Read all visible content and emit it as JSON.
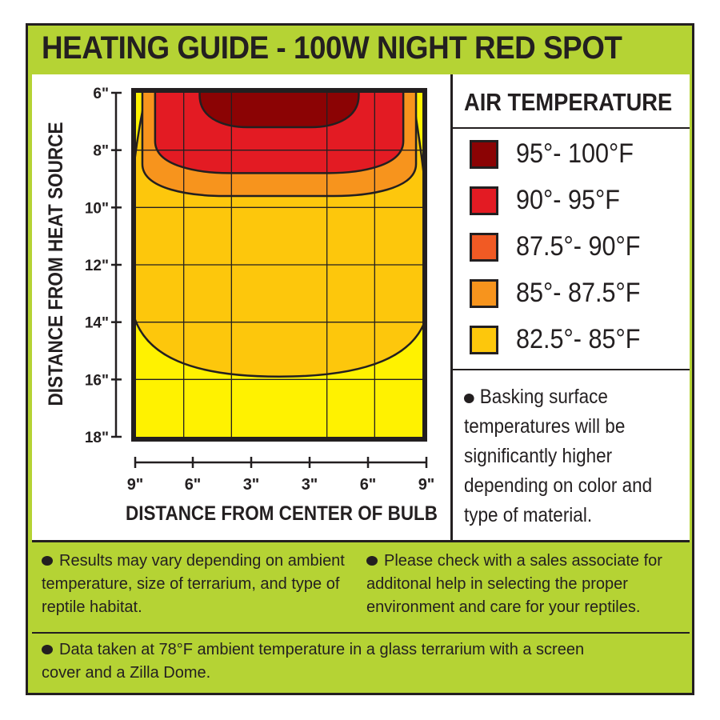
{
  "title": "HEATING GUIDE - 100W NIGHT RED SPOT",
  "chart_data": {
    "type": "heatmap",
    "subtype": "contour",
    "xlabel": "DISTANCE FROM CENTER OF BULB",
    "ylabel": "DISTANCE FROM HEAT SOURCE",
    "x_ticks": [
      "9\"",
      "6\"",
      "3\"",
      "3\"",
      "6\"",
      "9\""
    ],
    "y_ticks": [
      "6\"",
      "8\"",
      "10\"",
      "12\"",
      "14\"",
      "16\"",
      "18\""
    ],
    "xlim": [
      -9,
      9
    ],
    "ylim": [
      6,
      18
    ],
    "grid": true,
    "legend_title": "AIR TEMPERATURE",
    "legend_placement": "right",
    "zones": [
      {
        "label": "95°- 100°F",
        "color": "#8b0304",
        "x_range": [
          -5,
          5
        ],
        "max_depth": 7.2
      },
      {
        "label": "90°- 95°F",
        "color": "#e31b23",
        "x_range": [
          -7.8,
          7.8
        ],
        "max_depth": 8.8
      },
      {
        "label": "87.5°- 90°F",
        "color": "#f15a24",
        "x_range": null,
        "max_depth": null
      },
      {
        "label": "85°- 87.5°F",
        "color": "#f7941d",
        "x_range": [
          -8.6,
          8.6
        ],
        "max_depth": 9.6
      },
      {
        "label": "82.5°- 85°F",
        "color": "#fdc70c",
        "x_range": [
          -8.3,
          8.3
        ],
        "max_depth": 15.9
      }
    ],
    "background_color": "#fff200"
  },
  "notes": {
    "basking": "Basking surface temperatures will be significantly higher depending on color and type of material.",
    "results": "Results may vary depending on ambient temperature, size of terrarium, and type of reptile habitat.",
    "sales": "Please check with a sales associate for additonal help in selecting the proper environment and care for your reptiles.",
    "data": "Data taken at 78°F ambient temperature in a glass terrarium with a screen cover and a Zilla Dome."
  }
}
